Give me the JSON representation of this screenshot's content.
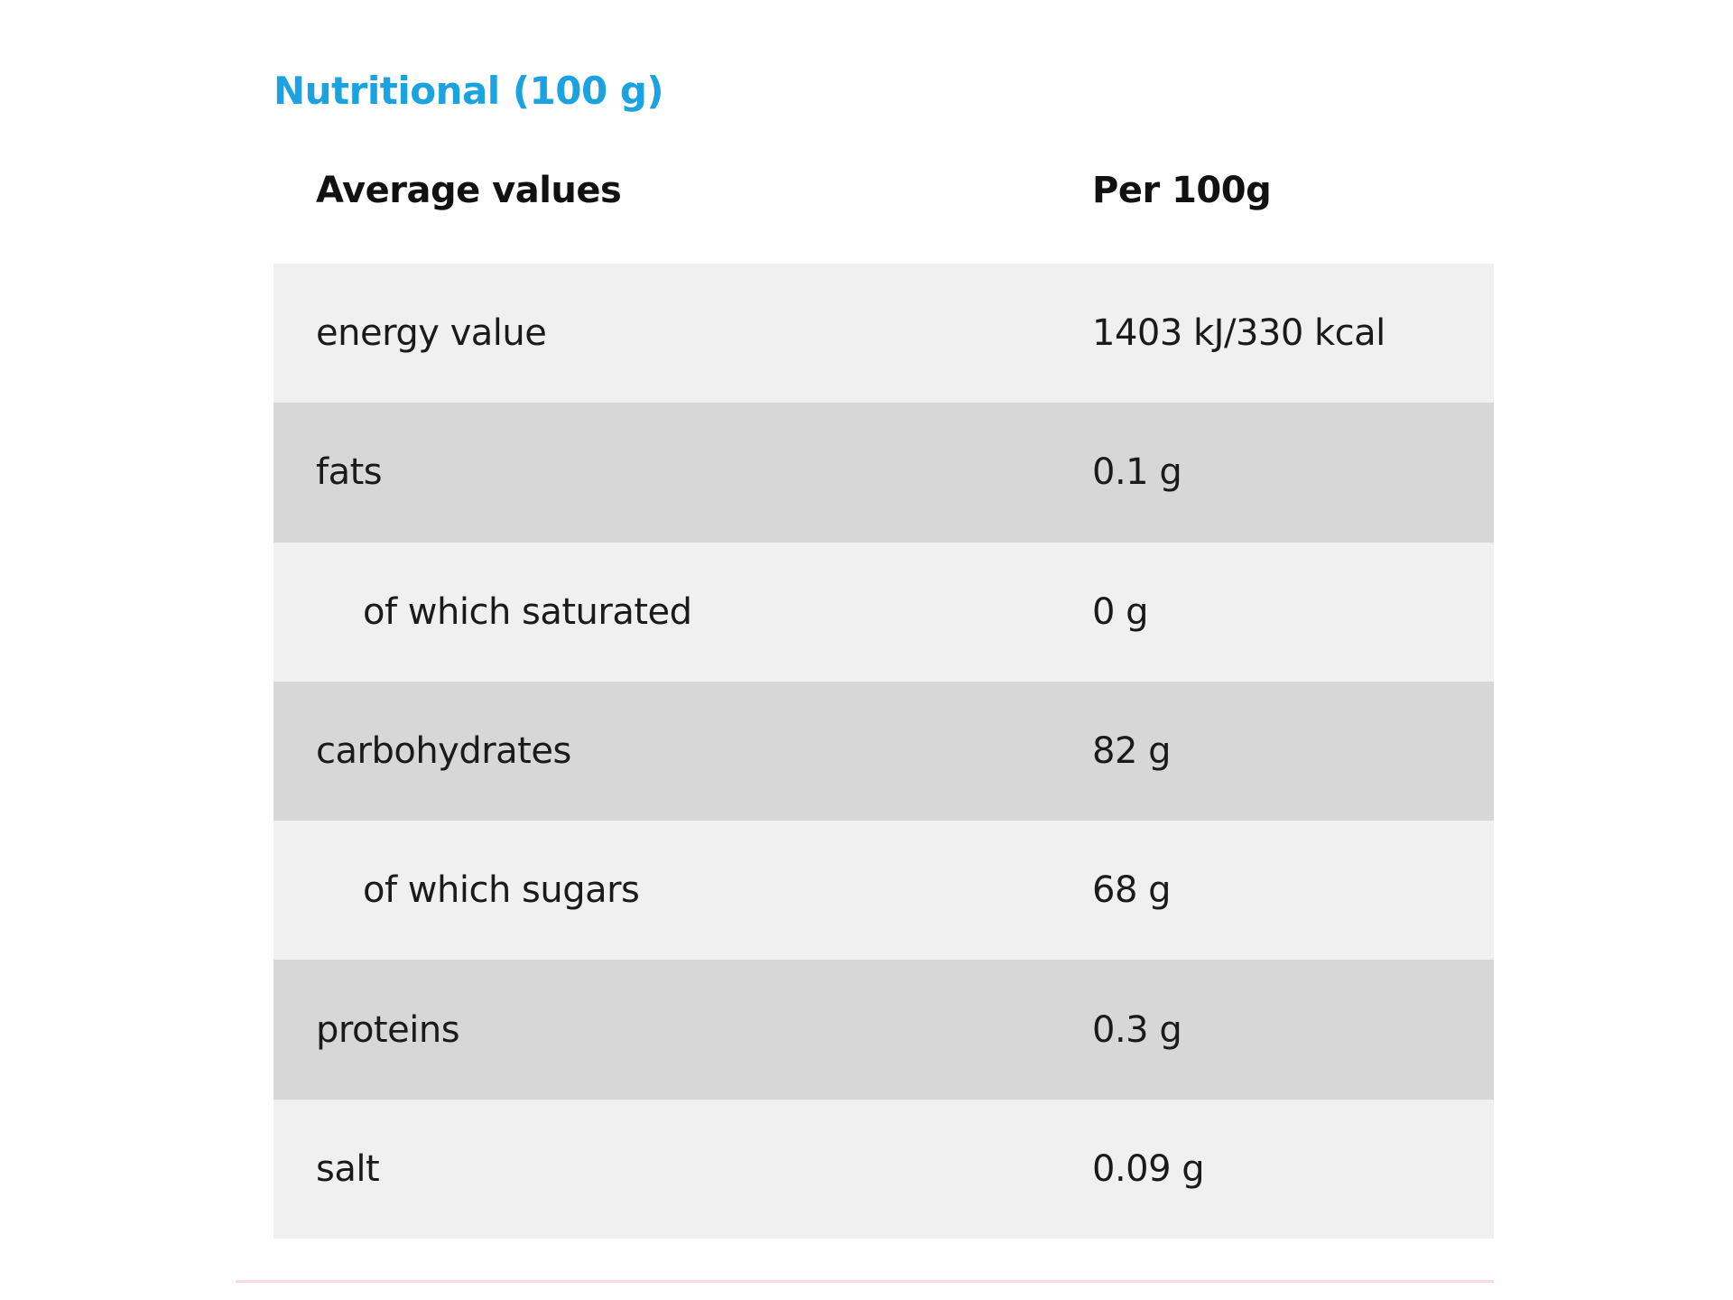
{
  "colors": {
    "accent": "#1aa3e0",
    "row_light": "#f0f0f0",
    "row_dark": "#d7d7d7",
    "divider": "#fcd9e0"
  },
  "title": "Nutritional (100 g)",
  "header": {
    "col1": "Average values",
    "col2": "Per 100g"
  },
  "rows": [
    {
      "name": "energy value",
      "value": "1403 kJ/330 kcal",
      "indent": false
    },
    {
      "name": "fats",
      "value": "0.1 g",
      "indent": false
    },
    {
      "name": "of which saturated",
      "value": "0 g",
      "indent": true
    },
    {
      "name": "carbohydrates",
      "value": "82 g",
      "indent": false
    },
    {
      "name": "of which sugars",
      "value": "68 g",
      "indent": true
    },
    {
      "name": "proteins",
      "value": "0.3 g",
      "indent": false
    },
    {
      "name": "salt",
      "value": "0.09 g",
      "indent": false
    }
  ]
}
